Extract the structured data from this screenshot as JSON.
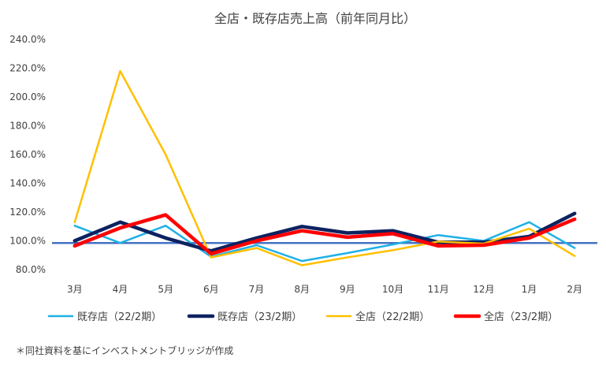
{
  "chart_data": {
    "type": "line",
    "title": "全店・既存店売上高（前年同月比）",
    "categories": [
      "3月",
      "4月",
      "5月",
      "6月",
      "7月",
      "8月",
      "9月",
      "10月",
      "11月",
      "12月",
      "1月",
      "2月"
    ],
    "ylim": [
      80,
      240
    ],
    "yticks": [
      "80.0%",
      "100.0%",
      "120.0%",
      "140.0%",
      "160.0%",
      "180.0%",
      "200.0%",
      "220.0%",
      "240.0%"
    ],
    "reference_line": 98.5,
    "grid": false,
    "legend_position": "bottom",
    "series": [
      {
        "name": "既存店（22/2期）",
        "color": "#1fb0e6",
        "width": 2.5,
        "values": [
          110.5,
          98.5,
          110.5,
          89,
          97,
          86,
          91.5,
          97.5,
          104,
          100,
          113,
          95
        ]
      },
      {
        "name": "既存店（23/2期）",
        "color": "#0d2260",
        "width": 4.5,
        "values": [
          100,
          113,
          102,
          93,
          102,
          110,
          105.5,
          107,
          99,
          99,
          103,
          119
        ]
      },
      {
        "name": "全店（22/2期）",
        "color": "#ffc000",
        "width": 2.5,
        "values": [
          113,
          218,
          160,
          88.5,
          95,
          83,
          88.5,
          93.5,
          99.5,
          98,
          108.5,
          89.5
        ]
      },
      {
        "name": "全店（23/2期）",
        "color": "#ff0000",
        "width": 4.5,
        "values": [
          96.5,
          109,
          118,
          91,
          100,
          107,
          102.5,
          105,
          96.5,
          97,
          102,
          115
        ]
      }
    ],
    "reference_color": "#4472c4"
  },
  "footnote": "＊同社資料を基にインベストメントブリッジが作成"
}
